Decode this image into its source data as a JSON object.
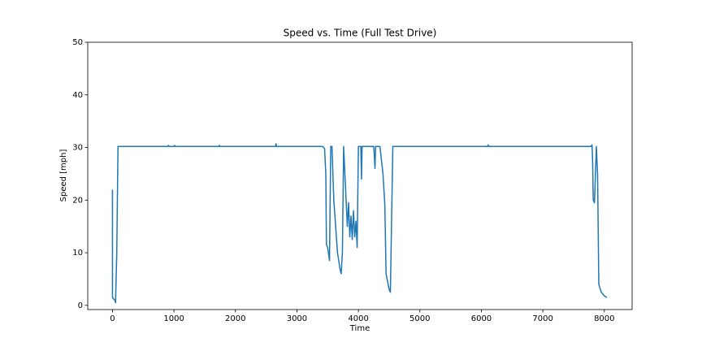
{
  "chart_data": {
    "type": "line",
    "title": "Speed vs. Time (Full Test Drive)",
    "x_label": "Time",
    "y_label": "Speed [mph]",
    "x": [
      0,
      0,
      20,
      40,
      50,
      70,
      90,
      900,
      910,
      920,
      1000,
      1010,
      1020,
      1730,
      1740,
      1750,
      2650,
      2660,
      2670,
      3420,
      3450,
      3470,
      3480,
      3500,
      3530,
      3550,
      3570,
      3600,
      3630,
      3660,
      3700,
      3720,
      3740,
      3760,
      3780,
      3800,
      3820,
      3840,
      3860,
      3880,
      3900,
      3920,
      3940,
      3960,
      3980,
      4000,
      4040,
      4050,
      4060,
      4250,
      4270,
      4280,
      4350,
      4400,
      4430,
      4450,
      4500,
      4520,
      4560,
      6100,
      6110,
      6120,
      7780,
      7800,
      7810,
      7820,
      7840,
      7870,
      7890,
      7910,
      7950,
      8000,
      8040
    ],
    "series": [
      {
        "name": "Speed",
        "color": "#1f77b4",
        "values": [
          22,
          1.5,
          1.2,
          1.0,
          0.5,
          10,
          30.2,
          30.2,
          30.4,
          30.2,
          30.2,
          30.4,
          30.2,
          30.2,
          30.4,
          30.2,
          30.2,
          30.7,
          30.2,
          30.2,
          29.8,
          25,
          11.5,
          11,
          8.5,
          30.2,
          30.2,
          20,
          15,
          10,
          7,
          6,
          10,
          30.2,
          25,
          20,
          15,
          19.5,
          13,
          17,
          12.5,
          18,
          13,
          16,
          11,
          30.2,
          30.2,
          24,
          30.2,
          30.2,
          26,
          30.2,
          30.2,
          25,
          19,
          6,
          3,
          2.5,
          30.2,
          30.2,
          30.5,
          30.2,
          30.2,
          30.5,
          27,
          20,
          19.5,
          30.2,
          25,
          4,
          2.5,
          1.8,
          1.5
        ]
      }
    ],
    "xlim": [
      -402,
      8452
    ],
    "ylim": [
      -0.8,
      50
    ],
    "xticks": [
      0,
      1000,
      2000,
      3000,
      4000,
      5000,
      6000,
      7000,
      8000
    ],
    "yticks": [
      0,
      10,
      20,
      30,
      40,
      50
    ]
  }
}
